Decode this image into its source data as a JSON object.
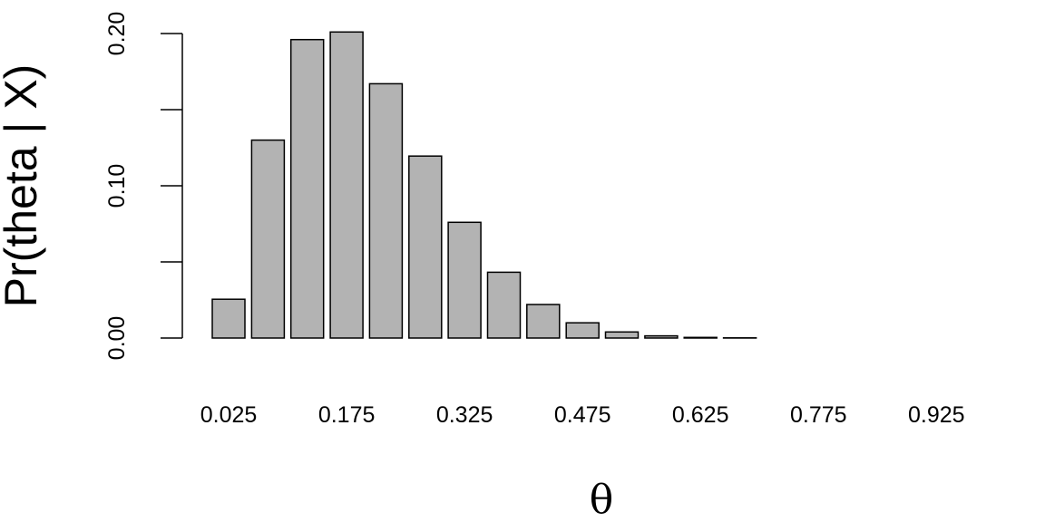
{
  "chart_data": {
    "type": "bar",
    "categories": [
      "0.025",
      "0.075",
      "0.125",
      "0.175",
      "0.225",
      "0.275",
      "0.325",
      "0.375",
      "0.425",
      "0.475",
      "0.525",
      "0.575",
      "0.625",
      "0.675",
      "0.725",
      "0.775",
      "0.825",
      "0.875",
      "0.925",
      "0.975"
    ],
    "values": [
      0.0255,
      0.13,
      0.196,
      0.201,
      0.167,
      0.1195,
      0.076,
      0.0432,
      0.022,
      0.01,
      0.004,
      0.0014,
      0.0004,
      0.0001,
      0,
      0,
      0,
      0,
      0,
      0
    ],
    "x_tick_labels": [
      "0.025",
      "0.175",
      "0.325",
      "0.475",
      "0.625",
      "0.775",
      "0.925"
    ],
    "y_tick_labels": [
      "0.00",
      "0.10",
      "0.20"
    ],
    "y_ticks": [
      0,
      0.05,
      0.1,
      0.15,
      0.2
    ],
    "ylim": [
      0,
      0.2
    ],
    "xlabel": "θ",
    "ylabel": "Pr(theta | X)",
    "title": "",
    "grid": false,
    "colors": {
      "bar_fill": "#b3b3b3",
      "bar_stroke": "#000000"
    }
  }
}
